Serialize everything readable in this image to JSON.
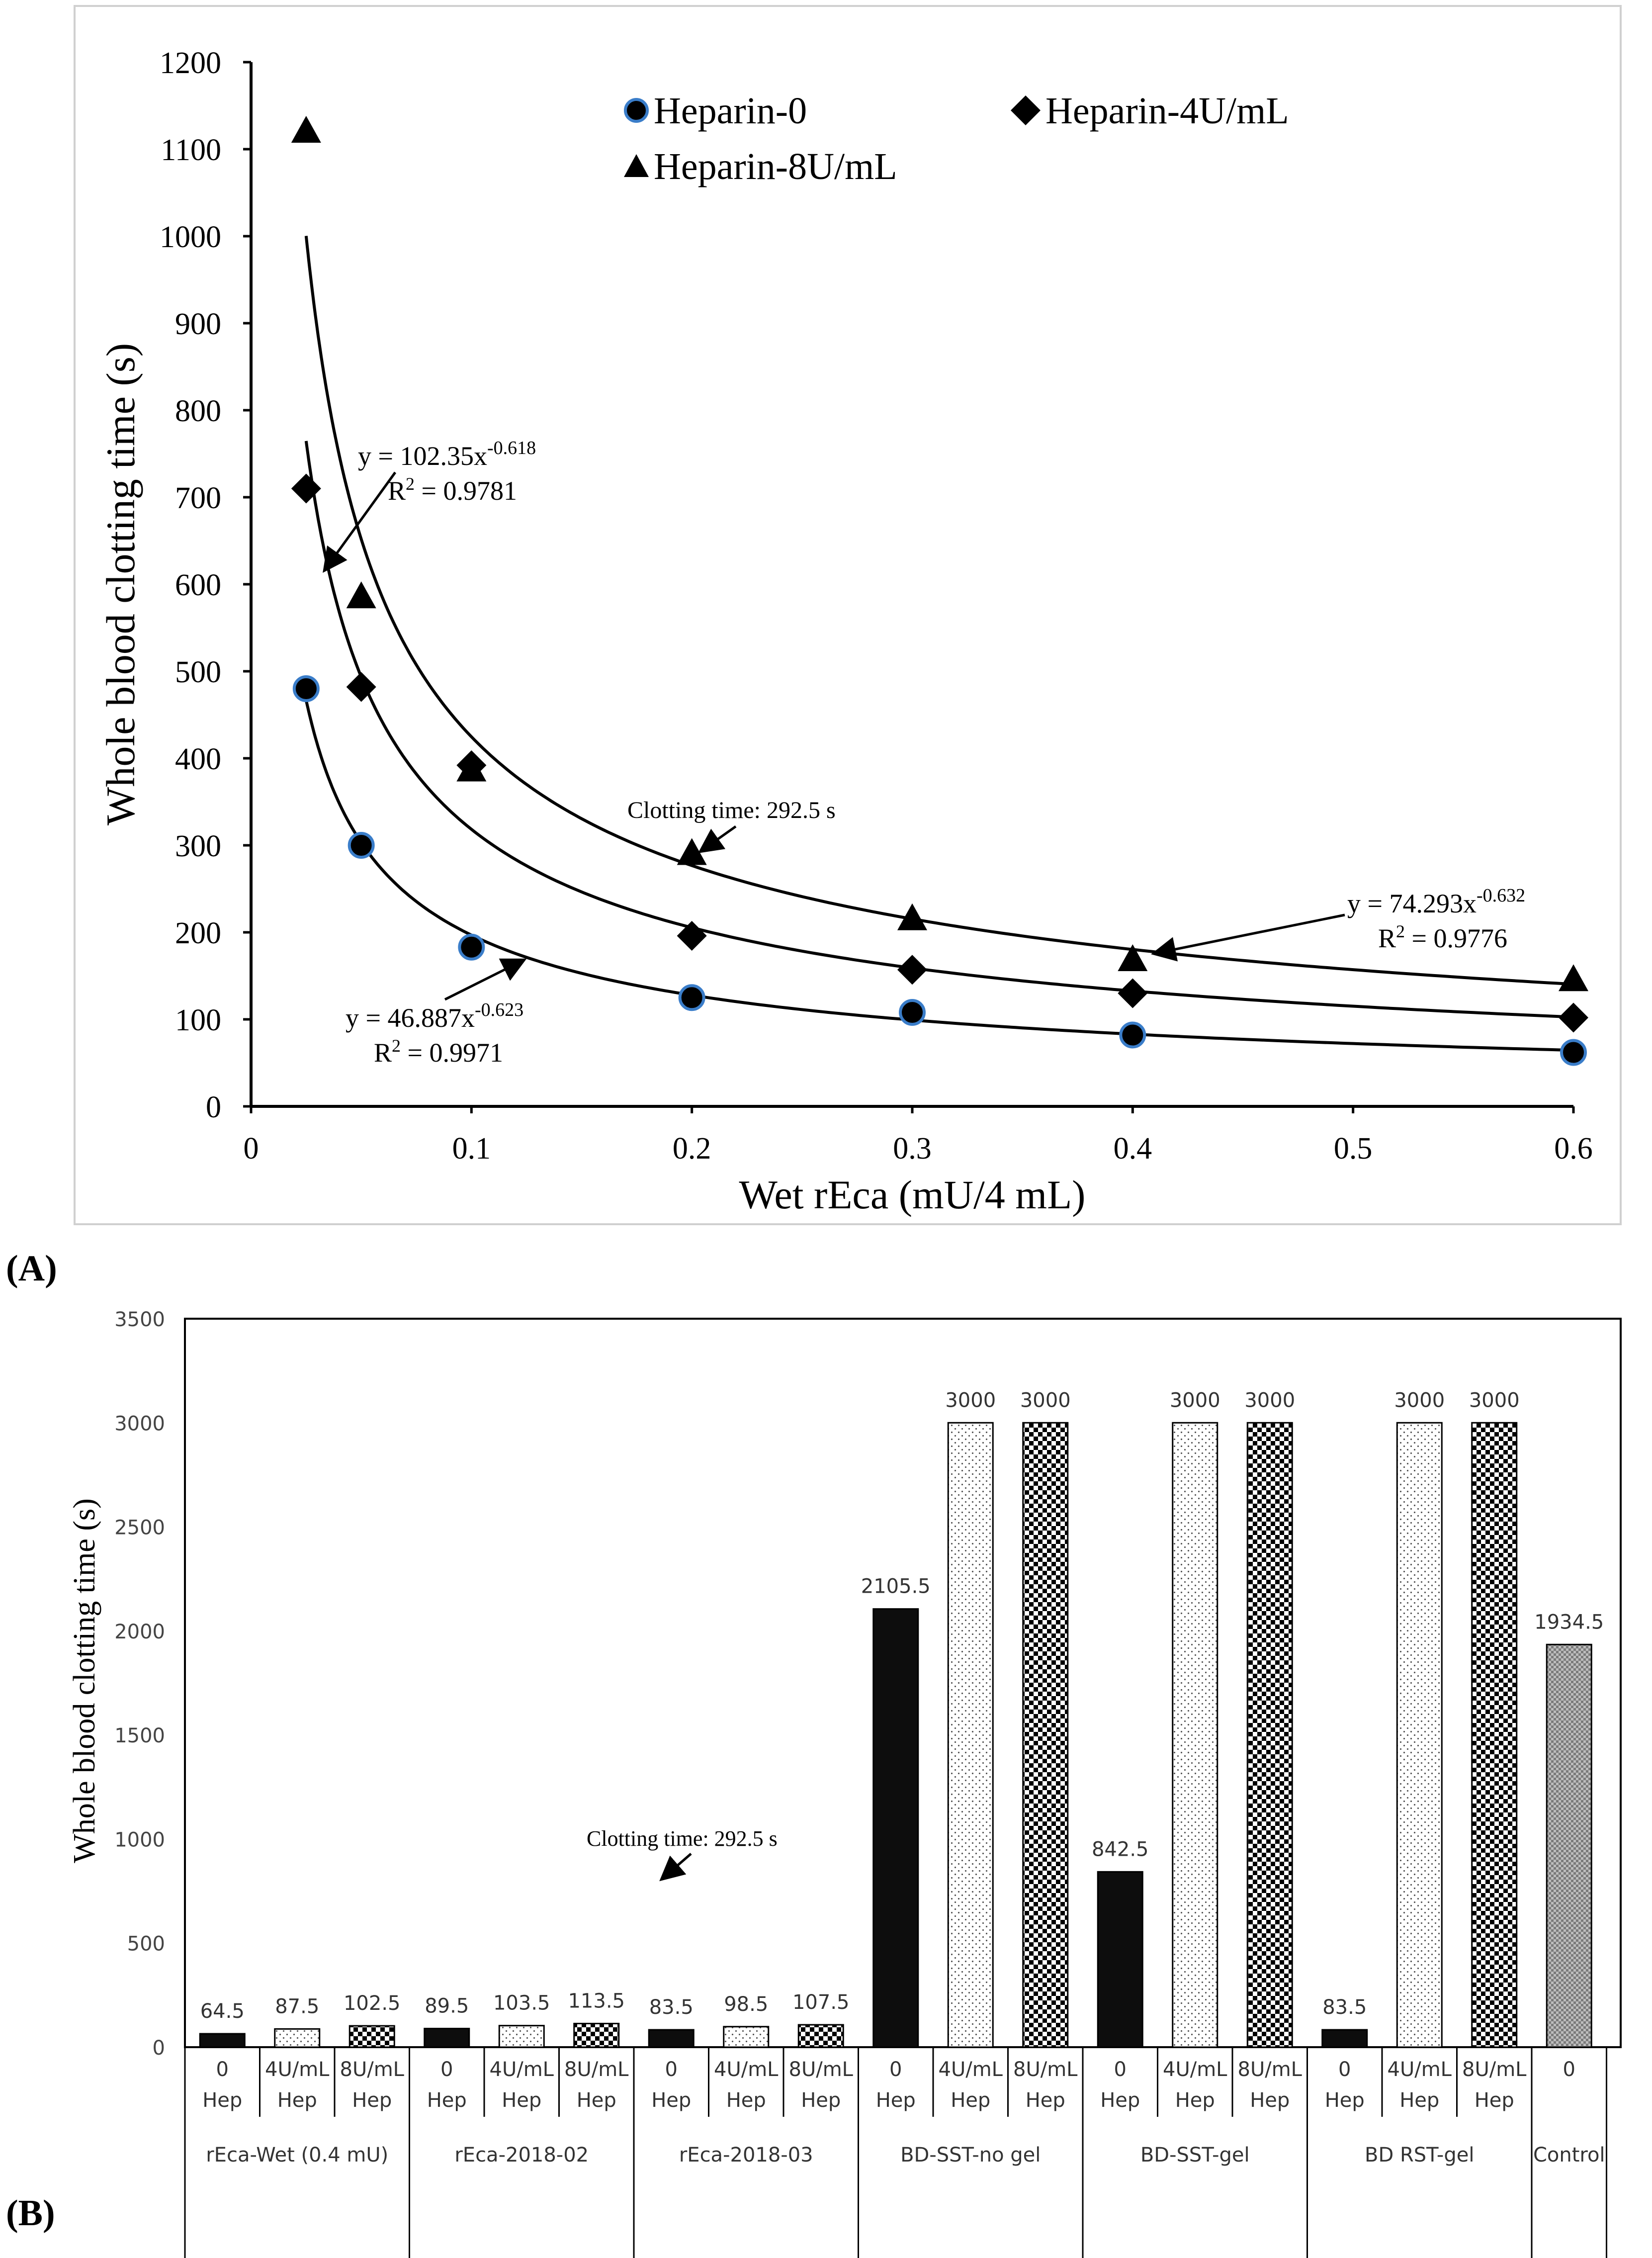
{
  "panel_labels": {
    "a": "(A)",
    "b": "(B)"
  },
  "colors": {
    "ink": "#000000",
    "frame": "#d0d0d0",
    "marker_outline": "#3a7dc9",
    "background": "#ffffff"
  },
  "chart_data": [
    {
      "type": "scatter",
      "xlabel": "Wet rEca (mU/4 mL)",
      "ylabel": "Whole blood clotting time (s)",
      "xlim": [
        0,
        0.6
      ],
      "ylim": [
        0,
        1200
      ],
      "x_ticks": [
        0,
        0.1,
        0.2,
        0.3,
        0.4,
        0.5,
        0.6
      ],
      "x_tick_labels": [
        "0",
        "0.1",
        "0.2",
        "0.3",
        "0.4",
        "0.5",
        "0.6"
      ],
      "y_ticks": [
        0,
        100,
        200,
        300,
        400,
        500,
        600,
        700,
        800,
        900,
        1000,
        1100,
        1200
      ],
      "y_tick_labels": [
        "0",
        "100",
        "200",
        "300",
        "400",
        "500",
        "600",
        "700",
        "800",
        "900",
        "1000",
        "1100",
        "1200"
      ],
      "legend": [
        "Heparin-0",
        "Heparin-4U/mL",
        "Heparin-8U/mL"
      ],
      "series": [
        {
          "name": "Heparin-0",
          "marker": "circle",
          "x": [
            0.025,
            0.05,
            0.1,
            0.2,
            0.3,
            0.4,
            0.6
          ],
          "y": [
            480,
            300,
            183,
            125,
            108,
            82,
            62
          ],
          "fit": {
            "a": 46.887,
            "b": -0.623
          }
        },
        {
          "name": "Heparin-4U/mL",
          "marker": "diamond",
          "x": [
            0.025,
            0.05,
            0.1,
            0.2,
            0.3,
            0.4,
            0.6
          ],
          "y": [
            710,
            482,
            392,
            196,
            157,
            130,
            102
          ],
          "fit": {
            "a": 74.293,
            "b": -0.632
          }
        },
        {
          "name": "Heparin-8U/mL",
          "marker": "triangle",
          "x": [
            0.025,
            0.05,
            0.1,
            0.2,
            0.3,
            0.4,
            0.6
          ],
          "y": [
            1120,
            585,
            386,
            290,
            215,
            168,
            145
          ],
          "fit": {
            "a": 102.35,
            "b": -0.618
          }
        }
      ],
      "annotations": {
        "eq_8u": {
          "eq_main": "y = 102.35x",
          "eq_exp": "-0.618",
          "r_main": "R",
          "r_exp": "2",
          "r_val": " = 0.9781"
        },
        "eq_4u": {
          "eq_main": "y = 74.293x",
          "eq_exp": "-0.632",
          "r_main": "R",
          "r_exp": "2",
          "r_val": " = 0.9776"
        },
        "eq_0": {
          "eq_main": "y = 46.887x",
          "eq_exp": "-0.623",
          "r_main": "R",
          "r_exp": "2",
          "r_val": " = 0.9971"
        },
        "clotting": "Clotting time: 292.5 s"
      }
    },
    {
      "type": "bar",
      "ylabel": "Whole blood clotting time (s)",
      "ylim": [
        0,
        3500
      ],
      "y_ticks": [
        0,
        500,
        1000,
        1500,
        2000,
        2500,
        3000,
        3500
      ],
      "y_tick_labels": [
        "0",
        "500",
        "1000",
        "1500",
        "2000",
        "2500",
        "3000",
        "3500"
      ],
      "annotation": "Clotting time: 292.5 s",
      "groups": [
        {
          "name": "rEca-Wet (0.4 mU)",
          "categories": [
            "0 Hep",
            "4U/mL Hep",
            "8U/mL Hep"
          ],
          "values": [
            64.5,
            87.5,
            102.5
          ],
          "labels": [
            "64.5",
            "87.5",
            "102.5"
          ]
        },
        {
          "name": "rEca-2018-02",
          "categories": [
            "0 Hep",
            "4U/mL Hep",
            "8U/mL Hep"
          ],
          "values": [
            89.5,
            103.5,
            113.5
          ],
          "labels": [
            "89.5",
            "103.5",
            "113.5"
          ]
        },
        {
          "name": "rEca-2018-03",
          "categories": [
            "0 Hep",
            "4U/mL Hep",
            "8U/mL Hep"
          ],
          "values": [
            83.5,
            98.5,
            107.5
          ],
          "labels": [
            "83.5",
            "98.5",
            "107.5"
          ]
        },
        {
          "name": "BD-SST-no gel",
          "categories": [
            "0 Hep",
            "4U/mL Hep",
            "8U/mL Hep"
          ],
          "values": [
            2105.5,
            3000,
            3000
          ],
          "labels": [
            "2105.5",
            "3000",
            "3000"
          ]
        },
        {
          "name": "BD-SST-gel",
          "categories": [
            "0 Hep",
            "4U/mL Hep",
            "8U/mL Hep"
          ],
          "values": [
            842.5,
            3000,
            3000
          ],
          "labels": [
            "842.5",
            "3000",
            "3000"
          ]
        },
        {
          "name": "BD RST-gel",
          "categories": [
            "0 Hep",
            "4U/mL Hep",
            "8U/mL Hep"
          ],
          "values": [
            83.5,
            3000,
            3000
          ],
          "labels": [
            "83.5",
            "3000",
            "3000"
          ]
        },
        {
          "name": "Control",
          "categories": [
            "0"
          ],
          "values": [
            1934.5
          ],
          "labels": [
            "1934.5"
          ]
        }
      ]
    }
  ]
}
